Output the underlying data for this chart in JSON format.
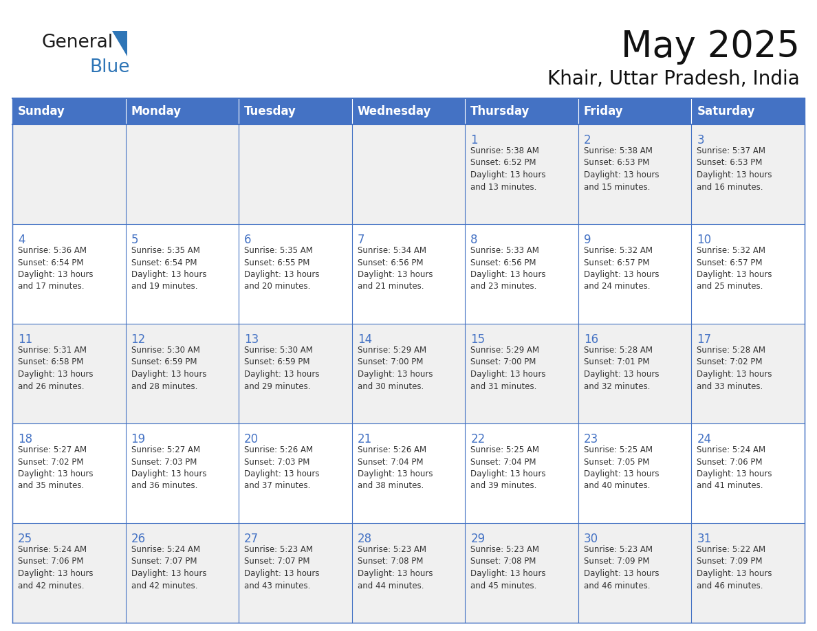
{
  "title": "May 2025",
  "subtitle": "Khair, Uttar Pradesh, India",
  "header_bg": "#4472C4",
  "header_text_color": "#FFFFFF",
  "cell_bg_light": "#F0F0F0",
  "cell_bg_white": "#FFFFFF",
  "day_names": [
    "Sunday",
    "Monday",
    "Tuesday",
    "Wednesday",
    "Thursday",
    "Friday",
    "Saturday"
  ],
  "logo_general_color": "#1a1a1a",
  "logo_blue_color": "#2E75B6",
  "weeks": [
    [
      {
        "day": "",
        "info": ""
      },
      {
        "day": "",
        "info": ""
      },
      {
        "day": "",
        "info": ""
      },
      {
        "day": "",
        "info": ""
      },
      {
        "day": "1",
        "info": "Sunrise: 5:38 AM\nSunset: 6:52 PM\nDaylight: 13 hours\nand 13 minutes."
      },
      {
        "day": "2",
        "info": "Sunrise: 5:38 AM\nSunset: 6:53 PM\nDaylight: 13 hours\nand 15 minutes."
      },
      {
        "day": "3",
        "info": "Sunrise: 5:37 AM\nSunset: 6:53 PM\nDaylight: 13 hours\nand 16 minutes."
      }
    ],
    [
      {
        "day": "4",
        "info": "Sunrise: 5:36 AM\nSunset: 6:54 PM\nDaylight: 13 hours\nand 17 minutes."
      },
      {
        "day": "5",
        "info": "Sunrise: 5:35 AM\nSunset: 6:54 PM\nDaylight: 13 hours\nand 19 minutes."
      },
      {
        "day": "6",
        "info": "Sunrise: 5:35 AM\nSunset: 6:55 PM\nDaylight: 13 hours\nand 20 minutes."
      },
      {
        "day": "7",
        "info": "Sunrise: 5:34 AM\nSunset: 6:56 PM\nDaylight: 13 hours\nand 21 minutes."
      },
      {
        "day": "8",
        "info": "Sunrise: 5:33 AM\nSunset: 6:56 PM\nDaylight: 13 hours\nand 23 minutes."
      },
      {
        "day": "9",
        "info": "Sunrise: 5:32 AM\nSunset: 6:57 PM\nDaylight: 13 hours\nand 24 minutes."
      },
      {
        "day": "10",
        "info": "Sunrise: 5:32 AM\nSunset: 6:57 PM\nDaylight: 13 hours\nand 25 minutes."
      }
    ],
    [
      {
        "day": "11",
        "info": "Sunrise: 5:31 AM\nSunset: 6:58 PM\nDaylight: 13 hours\nand 26 minutes."
      },
      {
        "day": "12",
        "info": "Sunrise: 5:30 AM\nSunset: 6:59 PM\nDaylight: 13 hours\nand 28 minutes."
      },
      {
        "day": "13",
        "info": "Sunrise: 5:30 AM\nSunset: 6:59 PM\nDaylight: 13 hours\nand 29 minutes."
      },
      {
        "day": "14",
        "info": "Sunrise: 5:29 AM\nSunset: 7:00 PM\nDaylight: 13 hours\nand 30 minutes."
      },
      {
        "day": "15",
        "info": "Sunrise: 5:29 AM\nSunset: 7:00 PM\nDaylight: 13 hours\nand 31 minutes."
      },
      {
        "day": "16",
        "info": "Sunrise: 5:28 AM\nSunset: 7:01 PM\nDaylight: 13 hours\nand 32 minutes."
      },
      {
        "day": "17",
        "info": "Sunrise: 5:28 AM\nSunset: 7:02 PM\nDaylight: 13 hours\nand 33 minutes."
      }
    ],
    [
      {
        "day": "18",
        "info": "Sunrise: 5:27 AM\nSunset: 7:02 PM\nDaylight: 13 hours\nand 35 minutes."
      },
      {
        "day": "19",
        "info": "Sunrise: 5:27 AM\nSunset: 7:03 PM\nDaylight: 13 hours\nand 36 minutes."
      },
      {
        "day": "20",
        "info": "Sunrise: 5:26 AM\nSunset: 7:03 PM\nDaylight: 13 hours\nand 37 minutes."
      },
      {
        "day": "21",
        "info": "Sunrise: 5:26 AM\nSunset: 7:04 PM\nDaylight: 13 hours\nand 38 minutes."
      },
      {
        "day": "22",
        "info": "Sunrise: 5:25 AM\nSunset: 7:04 PM\nDaylight: 13 hours\nand 39 minutes."
      },
      {
        "day": "23",
        "info": "Sunrise: 5:25 AM\nSunset: 7:05 PM\nDaylight: 13 hours\nand 40 minutes."
      },
      {
        "day": "24",
        "info": "Sunrise: 5:24 AM\nSunset: 7:06 PM\nDaylight: 13 hours\nand 41 minutes."
      }
    ],
    [
      {
        "day": "25",
        "info": "Sunrise: 5:24 AM\nSunset: 7:06 PM\nDaylight: 13 hours\nand 42 minutes."
      },
      {
        "day": "26",
        "info": "Sunrise: 5:24 AM\nSunset: 7:07 PM\nDaylight: 13 hours\nand 42 minutes."
      },
      {
        "day": "27",
        "info": "Sunrise: 5:23 AM\nSunset: 7:07 PM\nDaylight: 13 hours\nand 43 minutes."
      },
      {
        "day": "28",
        "info": "Sunrise: 5:23 AM\nSunset: 7:08 PM\nDaylight: 13 hours\nand 44 minutes."
      },
      {
        "day": "29",
        "info": "Sunrise: 5:23 AM\nSunset: 7:08 PM\nDaylight: 13 hours\nand 45 minutes."
      },
      {
        "day": "30",
        "info": "Sunrise: 5:23 AM\nSunset: 7:09 PM\nDaylight: 13 hours\nand 46 minutes."
      },
      {
        "day": "31",
        "info": "Sunrise: 5:22 AM\nSunset: 7:09 PM\nDaylight: 13 hours\nand 46 minutes."
      }
    ]
  ]
}
